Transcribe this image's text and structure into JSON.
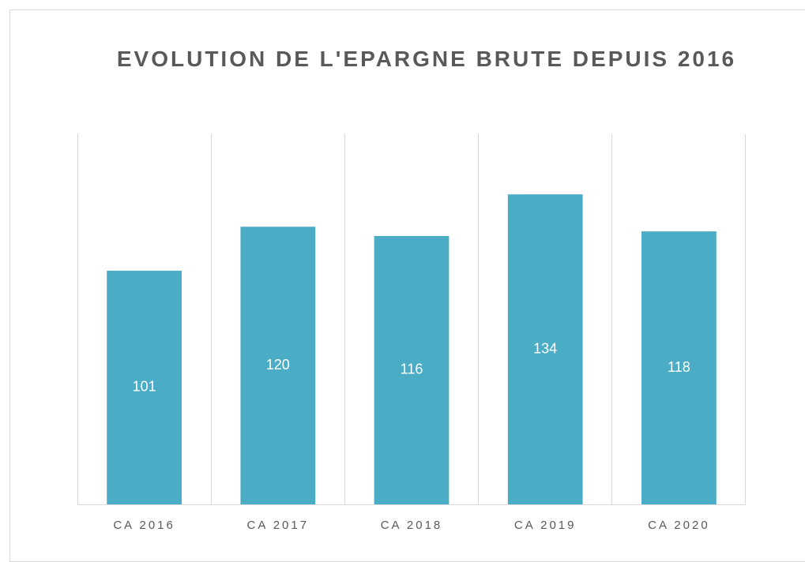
{
  "chart_data": {
    "type": "bar",
    "title": "EVOLUTION DE L'EPARGNE BRUTE DEPUIS 2016",
    "categories": [
      "CA 2016",
      "CA 2017",
      "CA 2018",
      "CA 2019",
      "CA 2020"
    ],
    "values": [
      101,
      120,
      116,
      134,
      118
    ],
    "color": "#4bacc6",
    "ylim": [
      0,
      160
    ],
    "data_labels": true
  }
}
